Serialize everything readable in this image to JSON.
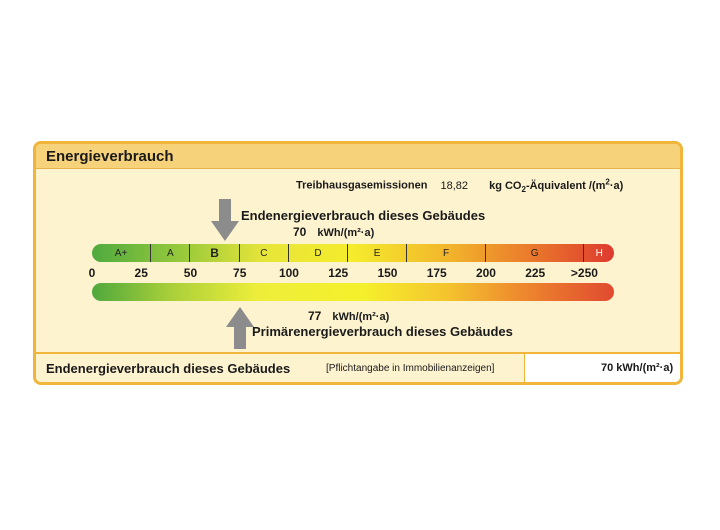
{
  "title": "Energieverbrauch",
  "co2": {
    "label": "Treibhausgasemissionen",
    "value": "18,82",
    "unit_prefix": "kg CO",
    "unit_sub": "2",
    "unit_suffix": "-Äquivalent /(m",
    "unit_sup": "2",
    "unit_end": "·a)"
  },
  "endenergie": {
    "label": "Endenergieverbrauch dieses Gebäudes",
    "value": "70",
    "unit": "kWh/(m²·a)",
    "value_num": 70
  },
  "primaerenergie": {
    "label": "Primärenergieverbrauch dieses Gebäudes",
    "value": "77",
    "unit": "kWh/(m²·a)",
    "value_num": 77
  },
  "classes": [
    {
      "label": "A+",
      "from": 0,
      "to": 30
    },
    {
      "label": "A",
      "from": 30,
      "to": 50
    },
    {
      "label": "B",
      "from": 50,
      "to": 75
    },
    {
      "label": "C",
      "from": 75,
      "to": 100
    },
    {
      "label": "D",
      "from": 100,
      "to": 130
    },
    {
      "label": "E",
      "from": 130,
      "to": 160
    },
    {
      "label": "F",
      "from": 160,
      "to": 200
    },
    {
      "label": "G",
      "from": 200,
      "to": 250
    },
    {
      "label": "H",
      "from": 250,
      "to": 265
    }
  ],
  "scale_ticks": [
    "0",
    "25",
    "50",
    "75",
    "100",
    "125",
    "150",
    "175",
    "200",
    "225",
    ">250"
  ],
  "footer": {
    "label": "Endenergieverbrauch dieses Gebäudes",
    "note": "[Pflichtangabe in Immobilienanzeigen]",
    "value": "70 kWh/(m²·a)"
  }
}
